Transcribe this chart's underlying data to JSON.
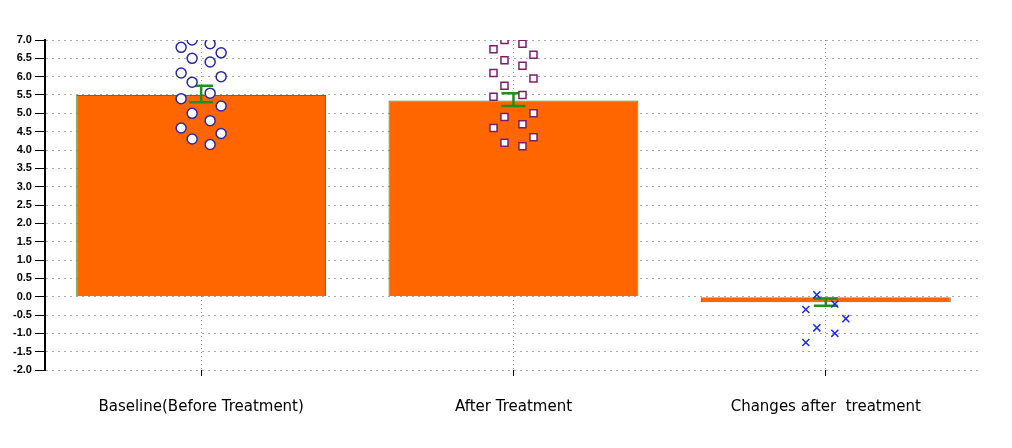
{
  "chart_data": {
    "type": "bar",
    "categories": [
      "Baseline(Before Treatment)",
      "After Treatment",
      "Changes after  treatment"
    ],
    "series": [
      {
        "color": "#ff6600",
        "values": [
          5.5,
          5.35,
          -0.15
        ],
        "errors": [
          [
            5.3,
            5.75
          ],
          [
            5.2,
            5.55
          ],
          [
            -0.25,
            -0.05
          ]
        ]
      },
      {
        "type": "scatter",
        "marker": "circle",
        "color": "#2a2a9a",
        "x": [
          "Baseline(Before Treatment)",
          "Baseline(Before Treatment)",
          "Baseline(Before Treatment)",
          "Baseline(Before Treatment)",
          "Baseline(Before Treatment)",
          "Baseline(Before Treatment)",
          "Baseline(Before Treatment)",
          "Baseline(Before Treatment)",
          "Baseline(Before Treatment)",
          "Baseline(Before Treatment)",
          "Baseline(Before Treatment)",
          "Baseline(Before Treatment)",
          "Baseline(Before Treatment)",
          "Baseline(Before Treatment)",
          "Baseline(Before Treatment)",
          "Baseline(Before Treatment)",
          "Baseline(Before Treatment)",
          "Baseline(Before Treatment)"
        ],
        "values": [
          7.0,
          6.9,
          6.8,
          6.65,
          6.5,
          6.4,
          6.1,
          6.0,
          5.85,
          5.55,
          5.4,
          5.2,
          5.0,
          4.8,
          4.6,
          4.45,
          4.3,
          4.15
        ]
      },
      {
        "type": "scatter",
        "marker": "square",
        "color": "#7a1f6a",
        "x": [
          "After Treatment",
          "After Treatment",
          "After Treatment",
          "After Treatment",
          "After Treatment",
          "After Treatment",
          "After Treatment",
          "After Treatment",
          "After Treatment",
          "After Treatment",
          "After Treatment",
          "After Treatment",
          "After Treatment",
          "After Treatment",
          "After Treatment",
          "After Treatment",
          "After Treatment",
          "After Treatment"
        ],
        "values": [
          7.0,
          6.9,
          6.75,
          6.6,
          6.45,
          6.3,
          6.1,
          5.95,
          5.75,
          5.5,
          5.45,
          5.0,
          4.9,
          4.7,
          4.6,
          4.35,
          4.2,
          4.1
        ]
      },
      {
        "type": "scatter",
        "marker": "cross",
        "color": "#1a2ee0",
        "x": [
          "Changes after  treatment",
          "Changes after  treatment",
          "Changes after  treatment",
          "Changes after  treatment",
          "Changes after  treatment",
          "Changes after  treatment",
          "Changes after  treatment"
        ],
        "values": [
          0.05,
          -0.2,
          -0.35,
          -0.6,
          -0.85,
          -1.0,
          -1.25
        ]
      }
    ],
    "ylim": [
      -2.0,
      7.0
    ],
    "yticks": [
      {
        "value": -2,
        "label": "-2.0"
      },
      {
        "value": -1.5,
        "label": "-1.5"
      },
      {
        "value": -1,
        "label": "-1.0"
      },
      {
        "value": -0.5,
        "label": "-0.5"
      },
      {
        "value": 0,
        "label": "0.0"
      },
      {
        "value": 0.5,
        "label": "0.5"
      },
      {
        "value": 1,
        "label": "1.0"
      },
      {
        "value": 1.5,
        "label": "1.5"
      },
      {
        "value": 2,
        "label": "2.0"
      },
      {
        "value": 2.5,
        "label": "2.5"
      },
      {
        "value": 3,
        "label": "3.0"
      },
      {
        "value": 3.5,
        "label": "3.5"
      },
      {
        "value": 4,
        "label": "4.0"
      },
      {
        "value": 4.5,
        "label": "4.5"
      },
      {
        "value": 5,
        "label": "5.0"
      },
      {
        "value": 5.5,
        "label": "5.5"
      },
      {
        "value": 6,
        "label": "6.0"
      },
      {
        "value": 6.5,
        "label": "6.5"
      },
      {
        "value": 7,
        "label": "7.0"
      }
    ],
    "grid": true,
    "legend": false
  }
}
